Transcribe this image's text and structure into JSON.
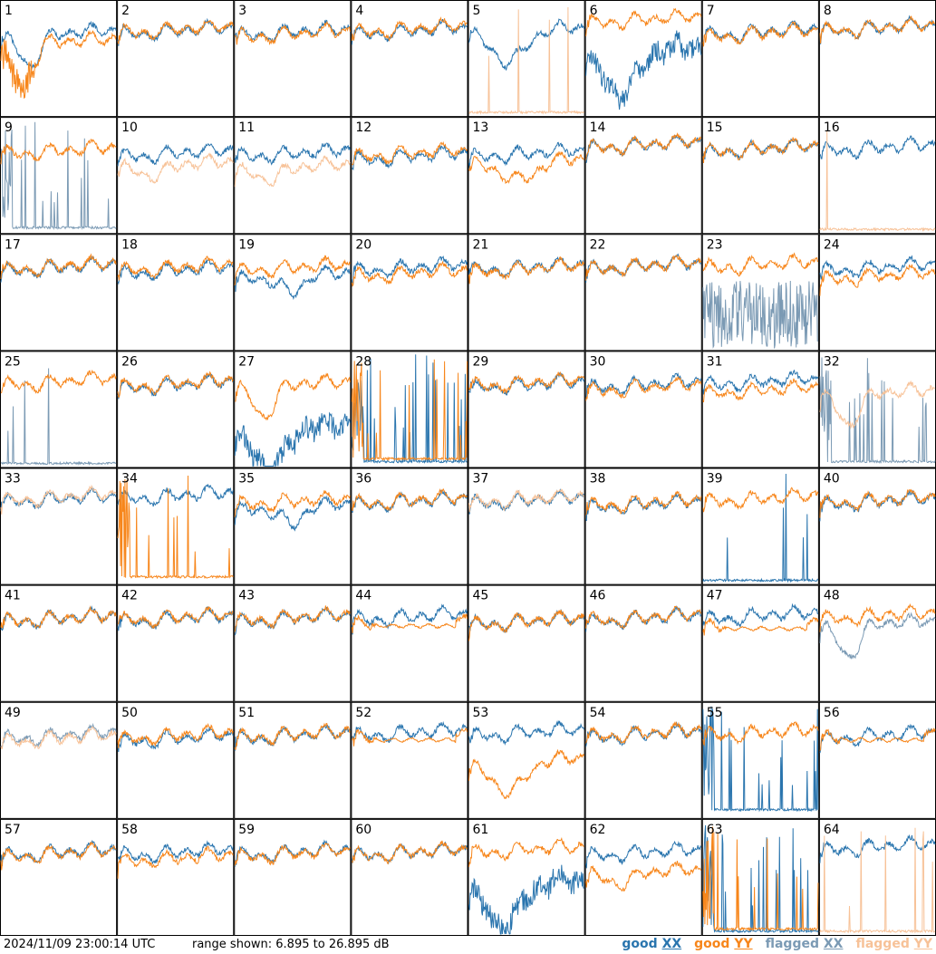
{
  "footer": {
    "timestamp": "2024/11/09 23:00:14 UTC",
    "range_text": "range shown: 6.895 to 26.895 dB"
  },
  "legend": [
    {
      "key": "good_xx",
      "prefix": "good ",
      "suffix": "XX",
      "color": "#2a75ae"
    },
    {
      "key": "good_yy",
      "prefix": "good ",
      "suffix": "YY",
      "color": "#f7861b"
    },
    {
      "key": "flagged_xx",
      "prefix": "flagged ",
      "suffix": "XX",
      "color": "#7b9ab4"
    },
    {
      "key": "flagged_yy",
      "prefix": "flagged ",
      "suffix": "YY",
      "color": "#f7c298"
    }
  ],
  "chart_data": {
    "type": "line",
    "layout": "small-multiples grid 8x8",
    "ylim": [
      6.895,
      26.895
    ],
    "yunit": "dB",
    "grid": false,
    "series_styles": {
      "good_xx": "#2a75ae",
      "good_yy": "#f7861b",
      "flagged_xx": "#7b9ab4",
      "flagged_yy": "#f7c298"
    },
    "panels": [
      {
        "label": "1",
        "xx": {
          "status": "good",
          "level": 20.5,
          "shape": "dip-early"
        },
        "yy": {
          "status": "good",
          "level": 19.0,
          "shape": "dip-early-deep"
        }
      },
      {
        "label": "2",
        "xx": {
          "status": "good",
          "level": 21.0,
          "shape": "bandpass"
        },
        "yy": {
          "status": "good",
          "level": 21.2,
          "shape": "bandpass"
        }
      },
      {
        "label": "3",
        "xx": {
          "status": "good",
          "level": 20.8,
          "shape": "bandpass"
        },
        "yy": {
          "status": "good",
          "level": 20.5,
          "shape": "bandpass"
        }
      },
      {
        "label": "4",
        "xx": {
          "status": "good",
          "level": 21.0,
          "shape": "bandpass"
        },
        "yy": {
          "status": "good",
          "level": 21.3,
          "shape": "bandpass"
        }
      },
      {
        "label": "5",
        "xx": {
          "status": "good",
          "level": 21.0,
          "shape": "dip-wide"
        },
        "yy": {
          "status": "flagged",
          "level": 7.2,
          "shape": "spikes-sparse"
        }
      },
      {
        "label": "6",
        "xx": {
          "status": "good",
          "level": 17.5,
          "shape": "dip-deep-noisy"
        },
        "yy": {
          "status": "good",
          "level": 22.5,
          "shape": "bandpass-high"
        }
      },
      {
        "label": "7",
        "xx": {
          "status": "good",
          "level": 20.8,
          "shape": "bandpass"
        },
        "yy": {
          "status": "good",
          "level": 20.5,
          "shape": "bandpass"
        }
      },
      {
        "label": "8",
        "xx": {
          "status": "good",
          "level": 21.5,
          "shape": "bandpass-flat"
        },
        "yy": {
          "status": "good",
          "level": 21.5,
          "shape": "bandpass-flat"
        }
      },
      {
        "label": "9",
        "xx": {
          "status": "flagged",
          "level": 7.5,
          "shape": "spikes"
        },
        "yy": {
          "status": "good",
          "level": 20.5,
          "shape": "bandpass"
        }
      },
      {
        "label": "10",
        "xx": {
          "status": "good",
          "level": 20.0,
          "shape": "bandpass"
        },
        "yy": {
          "status": "flagged",
          "level": 18.0,
          "shape": "bandpass-low"
        }
      },
      {
        "label": "11",
        "xx": {
          "status": "good",
          "level": 20.0,
          "shape": "bandpass"
        },
        "yy": {
          "status": "flagged",
          "level": 17.5,
          "shape": "bandpass-low"
        }
      },
      {
        "label": "12",
        "xx": {
          "status": "good",
          "level": 19.5,
          "shape": "bandpass"
        },
        "yy": {
          "status": "good",
          "level": 20.0,
          "shape": "bandpass"
        }
      },
      {
        "label": "13",
        "xx": {
          "status": "good",
          "level": 20.0,
          "shape": "bandpass"
        },
        "yy": {
          "status": "good",
          "level": 18.5,
          "shape": "dip-mid"
        }
      },
      {
        "label": "14",
        "xx": {
          "status": "good",
          "level": 21.5,
          "shape": "bandpass"
        },
        "yy": {
          "status": "good",
          "level": 21.6,
          "shape": "bandpass"
        }
      },
      {
        "label": "15",
        "xx": {
          "status": "good",
          "level": 20.8,
          "shape": "bandpass"
        },
        "yy": {
          "status": "good",
          "level": 20.8,
          "shape": "bandpass"
        }
      },
      {
        "label": "16",
        "xx": {
          "status": "good",
          "level": 21.0,
          "shape": "bandpass"
        },
        "yy": {
          "status": "flagged",
          "level": 7.2,
          "shape": "spikes-sparse"
        }
      },
      {
        "label": "17",
        "xx": {
          "status": "good",
          "level": 20.5,
          "shape": "bandpass"
        },
        "yy": {
          "status": "good",
          "level": 20.7,
          "shape": "bandpass"
        }
      },
      {
        "label": "18",
        "xx": {
          "status": "good",
          "level": 20.0,
          "shape": "bandpass"
        },
        "yy": {
          "status": "good",
          "level": 20.5,
          "shape": "bandpass"
        }
      },
      {
        "label": "19",
        "xx": {
          "status": "good",
          "level": 19.0,
          "shape": "bandpass-dip"
        },
        "yy": {
          "status": "good",
          "level": 20.5,
          "shape": "bandpass"
        }
      },
      {
        "label": "20",
        "xx": {
          "status": "good",
          "level": 20.5,
          "shape": "bandpass"
        },
        "yy": {
          "status": "good",
          "level": 19.5,
          "shape": "bandpass"
        }
      },
      {
        "label": "21",
        "xx": {
          "status": "good",
          "level": 20.5,
          "shape": "bandpass"
        },
        "yy": {
          "status": "good",
          "level": 20.3,
          "shape": "bandpass"
        }
      },
      {
        "label": "22",
        "xx": {
          "status": "good",
          "level": 20.8,
          "shape": "bandpass"
        },
        "yy": {
          "status": "good",
          "level": 20.8,
          "shape": "bandpass"
        }
      },
      {
        "label": "23",
        "xx": {
          "status": "flagged",
          "level": 13.0,
          "shape": "noisy-flat"
        },
        "yy": {
          "status": "good",
          "level": 21.0,
          "shape": "bandpass"
        }
      },
      {
        "label": "24",
        "xx": {
          "status": "good",
          "level": 20.5,
          "shape": "bandpass"
        },
        "yy": {
          "status": "good",
          "level": 19.0,
          "shape": "bandpass"
        }
      },
      {
        "label": "25",
        "xx": {
          "status": "flagged",
          "level": 7.2,
          "shape": "spikes-sparse"
        },
        "yy": {
          "status": "good",
          "level": 21.0,
          "shape": "bandpass"
        }
      },
      {
        "label": "26",
        "xx": {
          "status": "good",
          "level": 20.5,
          "shape": "bandpass"
        },
        "yy": {
          "status": "good",
          "level": 20.7,
          "shape": "bandpass"
        }
      },
      {
        "label": "27",
        "xx": {
          "status": "good",
          "level": 13.0,
          "shape": "dip-deep-noisy"
        },
        "yy": {
          "status": "good",
          "level": 20.5,
          "shape": "dip-early"
        }
      },
      {
        "label": "28",
        "xx": {
          "status": "good",
          "level": 7.5,
          "shape": "spikes"
        },
        "yy": {
          "status": "good",
          "level": 8.0,
          "shape": "spikes"
        }
      },
      {
        "label": "29",
        "xx": {
          "status": "good",
          "level": 20.5,
          "shape": "bandpass"
        },
        "yy": {
          "status": "good",
          "level": 20.8,
          "shape": "bandpass"
        }
      },
      {
        "label": "30",
        "xx": {
          "status": "good",
          "level": 20.5,
          "shape": "bandpass"
        },
        "yy": {
          "status": "good",
          "level": 20.0,
          "shape": "bandpass"
        }
      },
      {
        "label": "31",
        "xx": {
          "status": "good",
          "level": 21.0,
          "shape": "bandpass"
        },
        "yy": {
          "status": "good",
          "level": 19.5,
          "shape": "bandpass"
        }
      },
      {
        "label": "32",
        "xx": {
          "status": "flagged",
          "level": 7.5,
          "shape": "spikes"
        },
        "yy": {
          "status": "flagged",
          "level": 19.0,
          "shape": "dip-early"
        }
      },
      {
        "label": "33",
        "xx": {
          "status": "good",
          "level": 21.0,
          "shape": "bandpass"
        },
        "yy": {
          "status": "flagged",
          "level": 21.3,
          "shape": "bandpass"
        }
      },
      {
        "label": "34",
        "xx": {
          "status": "good",
          "level": 21.5,
          "shape": "bandpass"
        },
        "yy": {
          "status": "good",
          "level": 7.8,
          "shape": "spikes"
        }
      },
      {
        "label": "35",
        "xx": {
          "status": "good",
          "level": 19.5,
          "shape": "bandpass-dip"
        },
        "yy": {
          "status": "good",
          "level": 20.5,
          "shape": "bandpass"
        }
      },
      {
        "label": "36",
        "xx": {
          "status": "good",
          "level": 20.5,
          "shape": "bandpass"
        },
        "yy": {
          "status": "good",
          "level": 20.7,
          "shape": "bandpass"
        }
      },
      {
        "label": "37",
        "xx": {
          "status": "good",
          "level": 20.7,
          "shape": "bandpass"
        },
        "yy": {
          "status": "flagged",
          "level": 20.9,
          "shape": "bandpass"
        }
      },
      {
        "label": "38",
        "xx": {
          "status": "good",
          "level": 20.0,
          "shape": "bandpass"
        },
        "yy": {
          "status": "good",
          "level": 20.3,
          "shape": "bandpass"
        }
      },
      {
        "label": "39",
        "xx": {
          "status": "good",
          "level": 7.2,
          "shape": "spikes-sparse"
        },
        "yy": {
          "status": "good",
          "level": 21.0,
          "shape": "bandpass"
        }
      },
      {
        "label": "40",
        "xx": {
          "status": "good",
          "level": 20.5,
          "shape": "bandpass"
        },
        "yy": {
          "status": "good",
          "level": 20.7,
          "shape": "bandpass"
        }
      },
      {
        "label": "41",
        "xx": {
          "status": "good",
          "level": 20.5,
          "shape": "bandpass"
        },
        "yy": {
          "status": "good",
          "level": 20.5,
          "shape": "bandpass"
        }
      },
      {
        "label": "42",
        "xx": {
          "status": "good",
          "level": 20.5,
          "shape": "bandpass"
        },
        "yy": {
          "status": "good",
          "level": 20.7,
          "shape": "bandpass"
        }
      },
      {
        "label": "43",
        "xx": {
          "status": "good",
          "level": 20.5,
          "shape": "bandpass"
        },
        "yy": {
          "status": "good",
          "level": 20.7,
          "shape": "bandpass"
        }
      },
      {
        "label": "44",
        "xx": {
          "status": "good",
          "level": 20.8,
          "shape": "bandpass-flat"
        },
        "yy": {
          "status": "good",
          "level": 20.0,
          "shape": "flat-mid"
        }
      },
      {
        "label": "45",
        "xx": {
          "status": "good",
          "level": 20.0,
          "shape": "bandpass"
        },
        "yy": {
          "status": "good",
          "level": 20.0,
          "shape": "bandpass"
        }
      },
      {
        "label": "46",
        "xx": {
          "status": "good",
          "level": 20.5,
          "shape": "bandpass"
        },
        "yy": {
          "status": "good",
          "level": 20.7,
          "shape": "bandpass"
        }
      },
      {
        "label": "47",
        "xx": {
          "status": "good",
          "level": 21.0,
          "shape": "bandpass"
        },
        "yy": {
          "status": "good",
          "level": 19.5,
          "shape": "flat-mid"
        }
      },
      {
        "label": "48",
        "xx": {
          "status": "flagged",
          "level": 19.5,
          "shape": "dip-early"
        },
        "yy": {
          "status": "good",
          "level": 21.0,
          "shape": "bandpass"
        }
      },
      {
        "label": "49",
        "xx": {
          "status": "flagged",
          "level": 20.5,
          "shape": "bandpass"
        },
        "yy": {
          "status": "flagged",
          "level": 20.0,
          "shape": "bandpass"
        }
      },
      {
        "label": "50",
        "xx": {
          "status": "good",
          "level": 20.0,
          "shape": "bandpass"
        },
        "yy": {
          "status": "good",
          "level": 20.5,
          "shape": "bandpass"
        }
      },
      {
        "label": "51",
        "xx": {
          "status": "good",
          "level": 20.5,
          "shape": "bandpass"
        },
        "yy": {
          "status": "good",
          "level": 20.7,
          "shape": "bandpass"
        }
      },
      {
        "label": "52",
        "xx": {
          "status": "good",
          "level": 21.0,
          "shape": "bandpass"
        },
        "yy": {
          "status": "good",
          "level": 20.5,
          "shape": "flat-mid"
        }
      },
      {
        "label": "53",
        "xx": {
          "status": "good",
          "level": 21.0,
          "shape": "bandpass"
        },
        "yy": {
          "status": "good",
          "level": 16.0,
          "shape": "dip-wide"
        }
      },
      {
        "label": "54",
        "xx": {
          "status": "good",
          "level": 20.7,
          "shape": "bandpass"
        },
        "yy": {
          "status": "good",
          "level": 20.9,
          "shape": "bandpass"
        }
      },
      {
        "label": "55",
        "xx": {
          "status": "good",
          "level": 8.0,
          "shape": "spikes"
        },
        "yy": {
          "status": "good",
          "level": 21.0,
          "shape": "bandpass"
        }
      },
      {
        "label": "56",
        "xx": {
          "status": "good",
          "level": 20.5,
          "shape": "bandpass"
        },
        "yy": {
          "status": "good",
          "level": 20.5,
          "shape": "flat-mid"
        }
      },
      {
        "label": "57",
        "xx": {
          "status": "good",
          "level": 20.5,
          "shape": "bandpass"
        },
        "yy": {
          "status": "good",
          "level": 20.3,
          "shape": "bandpass"
        }
      },
      {
        "label": "58",
        "xx": {
          "status": "good",
          "level": 20.5,
          "shape": "bandpass"
        },
        "yy": {
          "status": "good",
          "level": 19.5,
          "shape": "bandpass"
        }
      },
      {
        "label": "59",
        "xx": {
          "status": "good",
          "level": 20.5,
          "shape": "bandpass"
        },
        "yy": {
          "status": "good",
          "level": 20.3,
          "shape": "bandpass"
        }
      },
      {
        "label": "60",
        "xx": {
          "status": "good",
          "level": 20.5,
          "shape": "bandpass"
        },
        "yy": {
          "status": "good",
          "level": 20.5,
          "shape": "bandpass"
        }
      },
      {
        "label": "61",
        "xx": {
          "status": "good",
          "level": 15.0,
          "shape": "dip-deep-noisy"
        },
        "yy": {
          "status": "good",
          "level": 21.0,
          "shape": "bandpass"
        }
      },
      {
        "label": "62",
        "xx": {
          "status": "good",
          "level": 20.5,
          "shape": "bandpass"
        },
        "yy": {
          "status": "good",
          "level": 17.0,
          "shape": "bandpass-low"
        }
      },
      {
        "label": "63",
        "xx": {
          "status": "good",
          "level": 7.2,
          "shape": "spikes"
        },
        "yy": {
          "status": "good",
          "level": 7.6,
          "shape": "spikes"
        }
      },
      {
        "label": "64",
        "xx": {
          "status": "good",
          "level": 21.5,
          "shape": "bandpass"
        },
        "yy": {
          "status": "flagged",
          "level": 7.2,
          "shape": "spikes-sparse"
        }
      }
    ]
  }
}
